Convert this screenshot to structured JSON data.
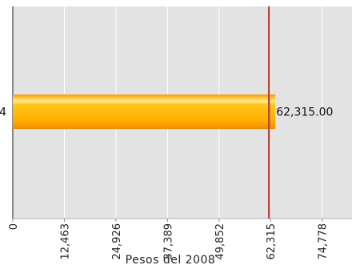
{
  "chart_data": {
    "type": "bar",
    "orientation": "horizontal",
    "title": "",
    "xlabel": "Pesos del 2008",
    "ylabel": "",
    "categories": [
      "4"
    ],
    "values": [
      62315
    ],
    "bar_labels": [
      "62,315.00"
    ],
    "xlim": [
      0,
      82000
    ],
    "xticks": [
      0,
      12463,
      24926,
      37389,
      49852,
      62315,
      74778
    ],
    "xtick_labels": [
      "0",
      "12,463",
      "24,926",
      "37,389",
      "49,852",
      "62,315",
      "74,778"
    ],
    "reference_line": 62315,
    "grid": true,
    "colors": {
      "plot_bg": "#e3e3e3",
      "grid": "#ffffff",
      "bar_top": "#ffd24a",
      "bar_mid": "#ffb000",
      "bar_edge": "#f08c00",
      "reference_line": "#b54a45",
      "axis": "#8a8a8a"
    }
  }
}
